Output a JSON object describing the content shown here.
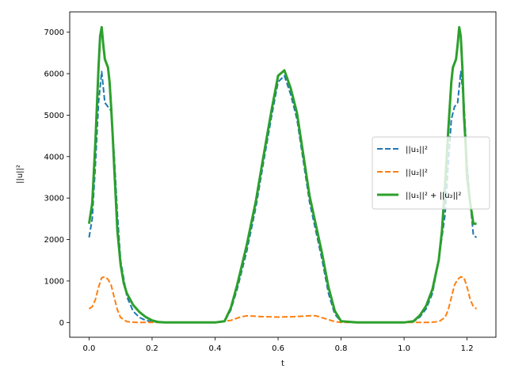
{
  "chart_data": {
    "type": "line",
    "xlabel": "t",
    "ylabel": "||u||²",
    "xlim": [
      -0.0615,
      1.2915
    ],
    "ylim": [
      -357,
      7490
    ],
    "xticks": [
      0.0,
      0.2,
      0.4,
      0.6,
      0.8,
      1.0,
      1.2
    ],
    "xtick_labels": [
      "0.0",
      "0.2",
      "0.4",
      "0.6",
      "0.8",
      "1.0",
      "1.2"
    ],
    "yticks": [
      0,
      1000,
      2000,
      3000,
      4000,
      5000,
      6000,
      7000
    ],
    "ytick_labels": [
      "0",
      "1000",
      "2000",
      "3000",
      "4000",
      "5000",
      "6000",
      "7000"
    ],
    "grid": false,
    "legend_position": "center-right",
    "series": [
      {
        "name": "||u₁||²",
        "color": "#1f77b4",
        "style": "dashed",
        "x": [
          0.0,
          0.01,
          0.02,
          0.03,
          0.04,
          0.05,
          0.06,
          0.07,
          0.08,
          0.09,
          0.1,
          0.12,
          0.14,
          0.16,
          0.18,
          0.2,
          0.22,
          0.24,
          0.3,
          0.35,
          0.4,
          0.43,
          0.45,
          0.47,
          0.5,
          0.53,
          0.55,
          0.58,
          0.6,
          0.62,
          0.64,
          0.66,
          0.68,
          0.7,
          0.72,
          0.74,
          0.76,
          0.78,
          0.8,
          0.85,
          0.9,
          0.95,
          1.0,
          1.03,
          1.05,
          1.07,
          1.09,
          1.11,
          1.13,
          1.14,
          1.15,
          1.16,
          1.17,
          1.18,
          1.19,
          1.2,
          1.21,
          1.22,
          1.23
        ],
        "y": [
          2050,
          2500,
          3800,
          5300,
          6050,
          5300,
          5200,
          5100,
          4000,
          2600,
          1500,
          620,
          270,
          120,
          50,
          15,
          5,
          0,
          0,
          0,
          0,
          20,
          300,
          800,
          1700,
          2800,
          3700,
          5000,
          5800,
          5950,
          5500,
          4900,
          3900,
          2900,
          2200,
          1500,
          700,
          200,
          20,
          0,
          0,
          0,
          0,
          20,
          130,
          330,
          700,
          1500,
          2600,
          3800,
          4900,
          5200,
          5300,
          6050,
          5300,
          3800,
          2900,
          2100,
          2050
        ]
      },
      {
        "name": "||u₂||²",
        "color": "#ff7f0e",
        "style": "dashed",
        "x": [
          0.0,
          0.01,
          0.02,
          0.03,
          0.04,
          0.05,
          0.06,
          0.07,
          0.08,
          0.09,
          0.1,
          0.12,
          0.15,
          0.2,
          0.3,
          0.4,
          0.45,
          0.48,
          0.5,
          0.55,
          0.6,
          0.65,
          0.7,
          0.72,
          0.75,
          0.78,
          0.8,
          0.9,
          1.0,
          1.08,
          1.11,
          1.13,
          1.14,
          1.15,
          1.16,
          1.17,
          1.18,
          1.19,
          1.2,
          1.21,
          1.22,
          1.23
        ],
        "y": [
          330,
          380,
          550,
          850,
          1080,
          1100,
          1040,
          900,
          600,
          300,
          120,
          20,
          0,
          0,
          0,
          0,
          50,
          130,
          160,
          140,
          130,
          140,
          160,
          160,
          90,
          20,
          0,
          0,
          0,
          0,
          20,
          120,
          300,
          600,
          900,
          1040,
          1100,
          1080,
          850,
          550,
          380,
          330
        ]
      },
      {
        "name": "||u₁||² + ||u₂||²",
        "color": "#2ca02c",
        "style": "solid",
        "x": [
          0.0,
          0.01,
          0.02,
          0.03,
          0.035,
          0.04,
          0.045,
          0.05,
          0.055,
          0.06,
          0.065,
          0.07,
          0.075,
          0.08,
          0.09,
          0.1,
          0.11,
          0.12,
          0.14,
          0.16,
          0.18,
          0.2,
          0.22,
          0.24,
          0.3,
          0.35,
          0.4,
          0.43,
          0.45,
          0.47,
          0.5,
          0.53,
          0.55,
          0.58,
          0.6,
          0.62,
          0.64,
          0.66,
          0.68,
          0.7,
          0.72,
          0.74,
          0.76,
          0.78,
          0.8,
          0.85,
          0.9,
          0.95,
          1.0,
          1.03,
          1.05,
          1.07,
          1.09,
          1.11,
          1.12,
          1.13,
          1.14,
          1.15,
          1.155,
          1.16,
          1.165,
          1.17,
          1.175,
          1.18,
          1.185,
          1.19,
          1.195,
          1.2,
          1.21,
          1.22,
          1.23
        ],
        "y": [
          2380,
          2880,
          4350,
          6150,
          6900,
          7120,
          6700,
          6350,
          6250,
          6150,
          5800,
          5200,
          4500,
          3700,
          2200,
          1400,
          950,
          700,
          420,
          250,
          130,
          50,
          10,
          0,
          0,
          0,
          0,
          30,
          350,
          900,
          1850,
          2950,
          3850,
          5150,
          5950,
          6080,
          5650,
          5050,
          4050,
          3050,
          2350,
          1650,
          850,
          280,
          30,
          0,
          0,
          0,
          0,
          30,
          170,
          400,
          800,
          1500,
          2200,
          3300,
          4600,
          5800,
          6150,
          6250,
          6350,
          6700,
          7120,
          6900,
          6150,
          5000,
          4350,
          3500,
          2880,
          2380,
          2380
        ]
      }
    ]
  }
}
